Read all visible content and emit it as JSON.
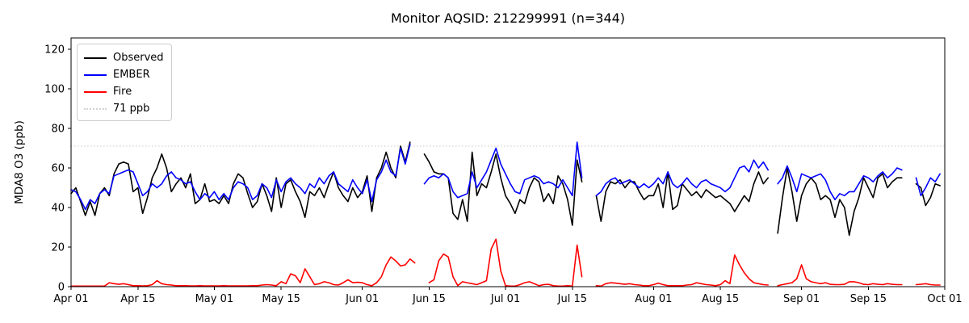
{
  "chart_data": {
    "type": "line",
    "title": "Monitor AQSID: 212299991 (n=344)",
    "xlabel": "",
    "ylabel": "MDA8 O3 (ppb)",
    "ylim": [
      0,
      125.7
    ],
    "x_axis": {
      "unit": "days since Apr 01",
      "range_days": [
        0,
        183
      ],
      "tick_days": [
        0,
        14,
        30,
        44,
        61,
        75,
        91,
        105,
        122,
        136,
        153,
        167,
        183
      ],
      "tick_labels": [
        "Apr 01",
        "Apr 15",
        "May 01",
        "May 15",
        "Jun 01",
        "Jun 15",
        "Jul 01",
        "Jul 15",
        "Aug 01",
        "Aug 15",
        "Sep 01",
        "Sep 15",
        "Oct 01"
      ]
    },
    "y_ticks": [
      0,
      20,
      40,
      60,
      80,
      100,
      120
    ],
    "grid": false,
    "legend_position": "upper left",
    "threshold": {
      "label": "71 ppb",
      "value": 71,
      "color": "#d3d3d3",
      "style": "dotted"
    },
    "legend_items": [
      {
        "label": "Observed",
        "color": "#000000",
        "style": "solid"
      },
      {
        "label": "EMBER",
        "color": "#0000ff",
        "style": "solid"
      },
      {
        "label": "Fire",
        "color": "#ff0000",
        "style": "solid"
      },
      {
        "label": "71 ppb",
        "color": "#d3d3d3",
        "style": "dotted"
      }
    ],
    "series": [
      {
        "name": "Observed",
        "color": "#000000",
        "values": [
          47,
          50,
          43,
          36,
          43,
          36,
          47,
          50,
          46,
          57,
          62,
          63,
          62,
          48,
          50,
          37,
          45,
          55,
          60,
          67,
          60,
          48,
          52,
          55,
          50,
          57,
          42,
          44,
          52,
          43,
          44,
          42,
          46,
          42,
          52,
          57,
          55,
          47,
          40,
          43,
          52,
          46,
          38,
          55,
          40,
          52,
          54,
          48,
          43,
          35,
          48,
          46,
          50,
          45,
          52,
          58,
          50,
          46,
          43,
          50,
          45,
          48,
          56,
          38,
          55,
          60,
          68,
          60,
          55,
          71,
          63,
          73,
          null,
          null,
          67,
          63,
          58,
          57,
          57,
          55,
          37,
          34,
          44,
          33,
          68,
          46,
          52,
          50,
          58,
          67,
          55,
          46,
          42,
          37,
          44,
          42,
          50,
          55,
          53,
          43,
          47,
          42,
          56,
          52,
          44,
          31,
          64,
          53,
          null,
          null,
          46,
          33,
          48,
          53,
          52,
          54,
          50,
          53,
          53,
          48,
          44,
          46,
          46,
          52,
          40,
          58,
          39,
          41,
          52,
          49,
          46,
          48,
          45,
          49,
          47,
          45,
          46,
          44,
          42,
          38,
          42,
          46,
          43,
          52,
          58,
          52,
          55,
          null,
          27,
          45,
          60,
          48,
          33,
          46,
          52,
          55,
          52,
          44,
          46,
          44,
          35,
          44,
          40,
          26,
          38,
          45,
          55,
          50,
          45,
          55,
          57,
          50,
          53,
          55,
          55,
          null,
          null,
          52,
          50,
          41,
          45,
          52,
          51
        ]
      },
      {
        "name": "EMBER",
        "color": "#0000ff",
        "values": [
          49,
          48,
          44,
          39,
          44,
          42,
          47,
          49,
          47,
          56,
          57,
          58,
          59,
          58,
          52,
          46,
          48,
          52,
          50,
          52,
          56,
          58,
          55,
          54,
          52,
          53,
          48,
          44,
          47,
          45,
          48,
          44,
          47,
          44,
          50,
          53,
          52,
          50,
          44,
          46,
          52,
          50,
          45,
          54,
          48,
          53,
          55,
          52,
          50,
          47,
          52,
          50,
          55,
          52,
          56,
          58,
          52,
          50,
          48,
          54,
          50,
          47,
          54,
          43,
          54,
          58,
          64,
          58,
          56,
          70,
          62,
          72,
          null,
          null,
          52,
          55,
          56,
          55,
          57,
          55,
          48,
          45,
          46,
          47,
          58,
          50,
          54,
          58,
          64,
          70,
          62,
          57,
          52,
          48,
          47,
          54,
          55,
          56,
          55,
          52,
          53,
          52,
          50,
          54,
          50,
          46,
          73,
          55,
          null,
          null,
          46,
          48,
          52,
          54,
          55,
          52,
          53,
          54,
          52,
          50,
          52,
          50,
          52,
          55,
          52,
          58,
          52,
          50,
          52,
          55,
          52,
          50,
          53,
          54,
          52,
          51,
          50,
          48,
          50,
          55,
          60,
          61,
          58,
          64,
          60,
          63,
          59,
          null,
          52,
          55,
          61,
          55,
          48,
          57,
          56,
          55,
          56,
          57,
          54,
          48,
          44,
          47,
          46,
          48,
          48,
          52,
          56,
          55,
          53,
          56,
          58,
          55,
          57,
          60,
          59,
          null,
          null,
          55,
          46,
          50,
          55,
          53,
          57
        ]
      },
      {
        "name": "Fire",
        "color": "#ff0000",
        "values": [
          0.3,
          0.3,
          0.3,
          0.3,
          0.3,
          0.3,
          0.3,
          0.3,
          2,
          1.5,
          1.2,
          1.5,
          1,
          0.5,
          0.5,
          0.4,
          0.5,
          1,
          3,
          1.5,
          1,
          0.8,
          0.5,
          0.5,
          0.5,
          0.4,
          0.4,
          0.5,
          0.4,
          0.4,
          0.4,
          0.4,
          0.5,
          0.4,
          0.4,
          0.4,
          0.4,
          0.4,
          0.5,
          0.5,
          0.8,
          1,
          0.8,
          0.5,
          2.5,
          1.5,
          6.5,
          5.5,
          2,
          9,
          5,
          1,
          1.5,
          2.5,
          2,
          1,
          0.8,
          2,
          3.5,
          2,
          2.2,
          2,
          1,
          0.5,
          2,
          5,
          11,
          15,
          13,
          10.5,
          11,
          14,
          12,
          null,
          null,
          2,
          3.5,
          13,
          16.5,
          15,
          5,
          0.5,
          2.5,
          2,
          1.5,
          1,
          2,
          3,
          19,
          24,
          8,
          0.5,
          0.3,
          0.3,
          1,
          2,
          2.5,
          1.5,
          0.5,
          1,
          1.2,
          0.5,
          0.3,
          0.3,
          0.5,
          0.3,
          21,
          5,
          null,
          null,
          0.5,
          0.3,
          1.5,
          2,
          1.8,
          1.5,
          1.2,
          1.5,
          1,
          0.8,
          0.5,
          0.5,
          1,
          1.8,
          1,
          0.5,
          0.5,
          0.5,
          0.5,
          0.8,
          1,
          2,
          1.5,
          1,
          0.8,
          0.5,
          1,
          3,
          1.5,
          16,
          11,
          7,
          4,
          2,
          1.5,
          1,
          0.8,
          null,
          0.5,
          1,
          1.5,
          2,
          4,
          11,
          4,
          2.5,
          2,
          1.5,
          2,
          1.2,
          1,
          1,
          1.2,
          2.5,
          2.5,
          2,
          1.2,
          1,
          1.5,
          1.2,
          1,
          1.5,
          1.2,
          1,
          1,
          null,
          null,
          1,
          1.2,
          1.5,
          1,
          0.8,
          0.8
        ]
      }
    ]
  }
}
